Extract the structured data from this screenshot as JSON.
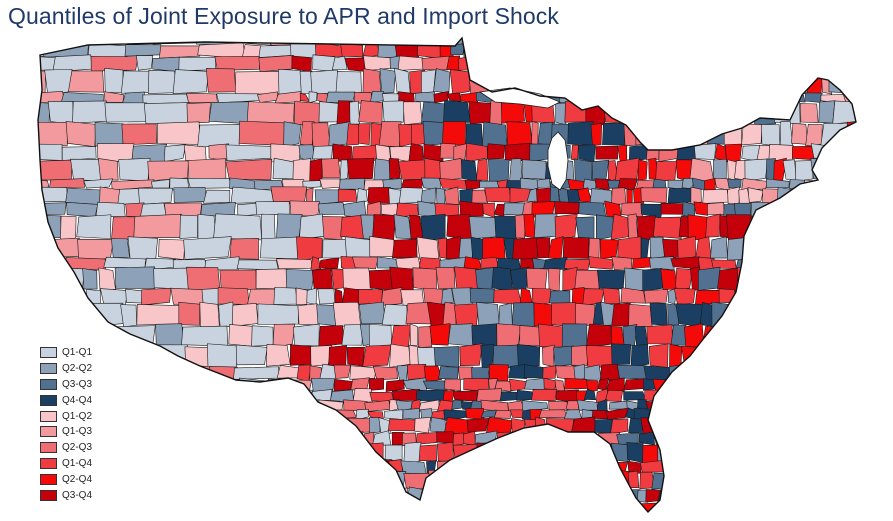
{
  "title": "Quantiles of Joint Exposure to APR and Import Shock",
  "legend": {
    "position": "bottom-left",
    "items": [
      {
        "label": "Q1-Q1",
        "color": "#c9d3df"
      },
      {
        "label": "Q2-Q2",
        "color": "#8da1b8"
      },
      {
        "label": "Q3-Q3",
        "color": "#52708f"
      },
      {
        "label": "Q4-Q4",
        "color": "#1b3f63"
      },
      {
        "label": "Q1-Q2",
        "color": "#f8c5c8"
      },
      {
        "label": "Q1-Q3",
        "color": "#f39a9e"
      },
      {
        "label": "Q2-Q3",
        "color": "#ee6e73"
      },
      {
        "label": "Q1-Q4",
        "color": "#f03c40"
      },
      {
        "label": "Q2-Q4",
        "color": "#f50a0a"
      },
      {
        "label": "Q3-Q4",
        "color": "#c4000b"
      }
    ]
  },
  "map": {
    "region": "contiguous-united-states",
    "units": "commuting zones",
    "border_color": "#1a1a1a",
    "regional_color_bias": {
      "west": [
        "#c9d3df",
        "#c9d3df",
        "#c9d3df",
        "#8da1b8",
        "#f8c5c8",
        "#f39a9e",
        "#ee6e73"
      ],
      "plains": [
        "#c9d3df",
        "#8da1b8",
        "#f8c5c8",
        "#ee6e73",
        "#f03c40",
        "#c4000b"
      ],
      "midwest_south": [
        "#52708f",
        "#1b3f63",
        "#f50a0a",
        "#c4000b",
        "#f03c40",
        "#ee6e73",
        "#8da1b8"
      ],
      "northeast": [
        "#f8c5c8",
        "#f39a9e",
        "#f50a0a",
        "#8da1b8",
        "#52708f",
        "#c9d3df"
      ]
    }
  }
}
